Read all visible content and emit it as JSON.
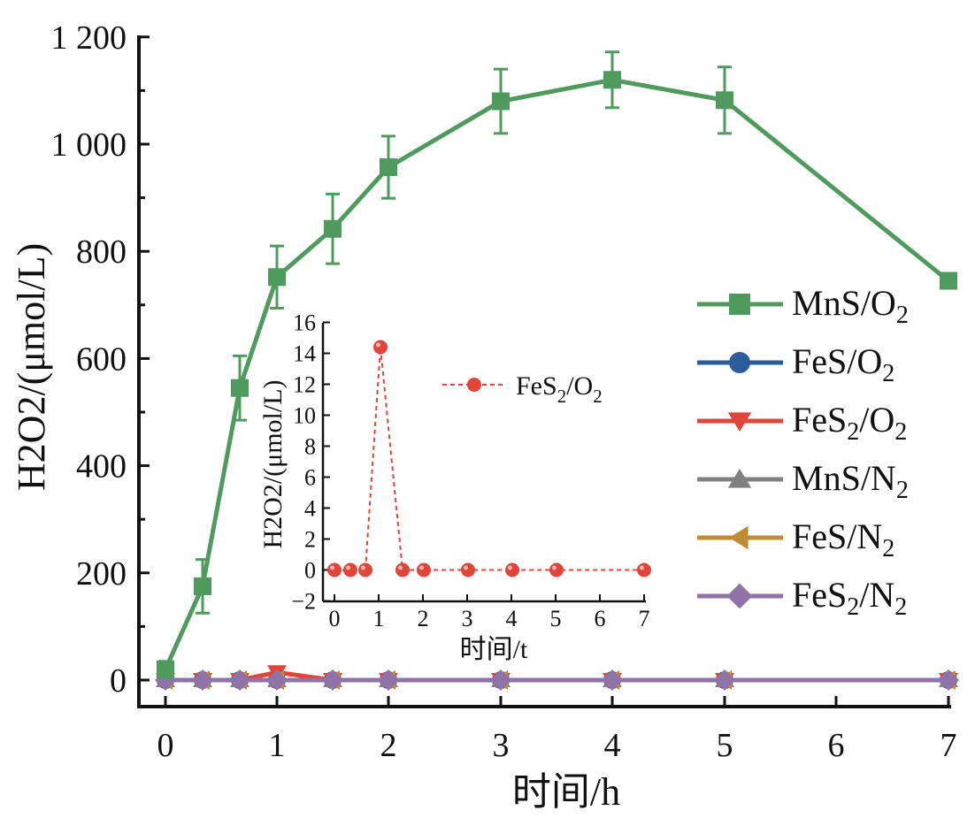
{
  "chart_data": [
    {
      "type": "line",
      "title": "",
      "xlabel": "时间/h",
      "ylabel": "H2O2/(μmol/L)",
      "xlim": [
        -0.25,
        7.0
      ],
      "ylim": [
        -50,
        1200
      ],
      "x_ticks": [
        0,
        1,
        2,
        3,
        4,
        5,
        6,
        7
      ],
      "x_tick_labels": [
        "0",
        "1",
        "2",
        "3",
        "4",
        "5",
        "6",
        "7"
      ],
      "y_ticks": [
        0,
        200,
        400,
        600,
        800,
        1000,
        1200
      ],
      "y_tick_labels": [
        "0",
        "200",
        "400",
        "600",
        "800",
        "1 000",
        "1 200"
      ],
      "legend_position": "right",
      "grid": false,
      "x": [
        0,
        0.33,
        0.67,
        1,
        1.5,
        2,
        3,
        4,
        5,
        7
      ],
      "series": [
        {
          "name": "MnS/O2",
          "label_main": "MnS/O",
          "sub1": "2",
          "label_mid": "",
          "sub2": "",
          "color": "#4f9a5d",
          "marker": "square",
          "values": [
            20,
            175,
            545,
            752,
            842,
            957,
            1080,
            1120,
            1082,
            745
          ],
          "error": [
            15,
            50,
            60,
            58,
            65,
            58,
            60,
            52,
            62,
            12
          ]
        },
        {
          "name": "FeS/O2",
          "label_main": "FeS/O",
          "sub1": "2",
          "label_mid": "",
          "sub2": "",
          "color": "#2b5d9c",
          "marker": "circle",
          "values": [
            0,
            0,
            0,
            0,
            0,
            0,
            0,
            0,
            0,
            0
          ]
        },
        {
          "name": "FeS2/O2",
          "label_main": "FeS",
          "sub1": "2",
          "label_mid": "/O",
          "sub2": "2",
          "color": "#e0453a",
          "marker": "triangle-down",
          "values": [
            0,
            0,
            0,
            14.4,
            0,
            0,
            0,
            0,
            0,
            0
          ]
        },
        {
          "name": "MnS/N2",
          "label_main": "MnS/N",
          "sub1": "2",
          "label_mid": "",
          "sub2": "",
          "color": "#808080",
          "marker": "triangle-up",
          "values": [
            0,
            0,
            0,
            0,
            0,
            0,
            0,
            0,
            0,
            0
          ]
        },
        {
          "name": "FeS/N2",
          "label_main": "FeS/N",
          "sub1": "2",
          "label_mid": "",
          "sub2": "",
          "color": "#c08b35",
          "marker": "triangle-left",
          "values": [
            0,
            0,
            0,
            0,
            0,
            0,
            0,
            0,
            0,
            0
          ]
        },
        {
          "name": "FeS2/N2",
          "label_main": "FeS",
          "sub1": "2",
          "label_mid": "/N",
          "sub2": "2",
          "color": "#8f73a8",
          "marker": "diamond",
          "values": [
            0,
            0,
            0,
            0,
            0,
            0,
            0,
            0,
            0,
            0
          ]
        }
      ]
    },
    {
      "type": "line",
      "title": "",
      "xlabel": "时间/t",
      "ylabel": "H2O2/(μmol/L)",
      "xlim": [
        -0.1,
        7.0
      ],
      "ylim": [
        -2,
        16
      ],
      "x_ticks": [
        0,
        1,
        2,
        3,
        4,
        5,
        6,
        7
      ],
      "y_ticks": [
        -2,
        0,
        2,
        4,
        6,
        8,
        10,
        12,
        14,
        16
      ],
      "legend_position": "top-right",
      "grid": false,
      "x": [
        0,
        0.33,
        0.67,
        1,
        1.5,
        2,
        3,
        4,
        5,
        7
      ],
      "series": [
        {
          "name": "FeS2/O2",
          "label_main": "FeS",
          "sub1": "2",
          "label_mid": "/O",
          "sub2": "2",
          "color": "#e0453a",
          "marker": "circle",
          "line_style": "dashed",
          "values": [
            0,
            0,
            0,
            14.4,
            0,
            0,
            0,
            0,
            0,
            0
          ]
        }
      ]
    }
  ]
}
